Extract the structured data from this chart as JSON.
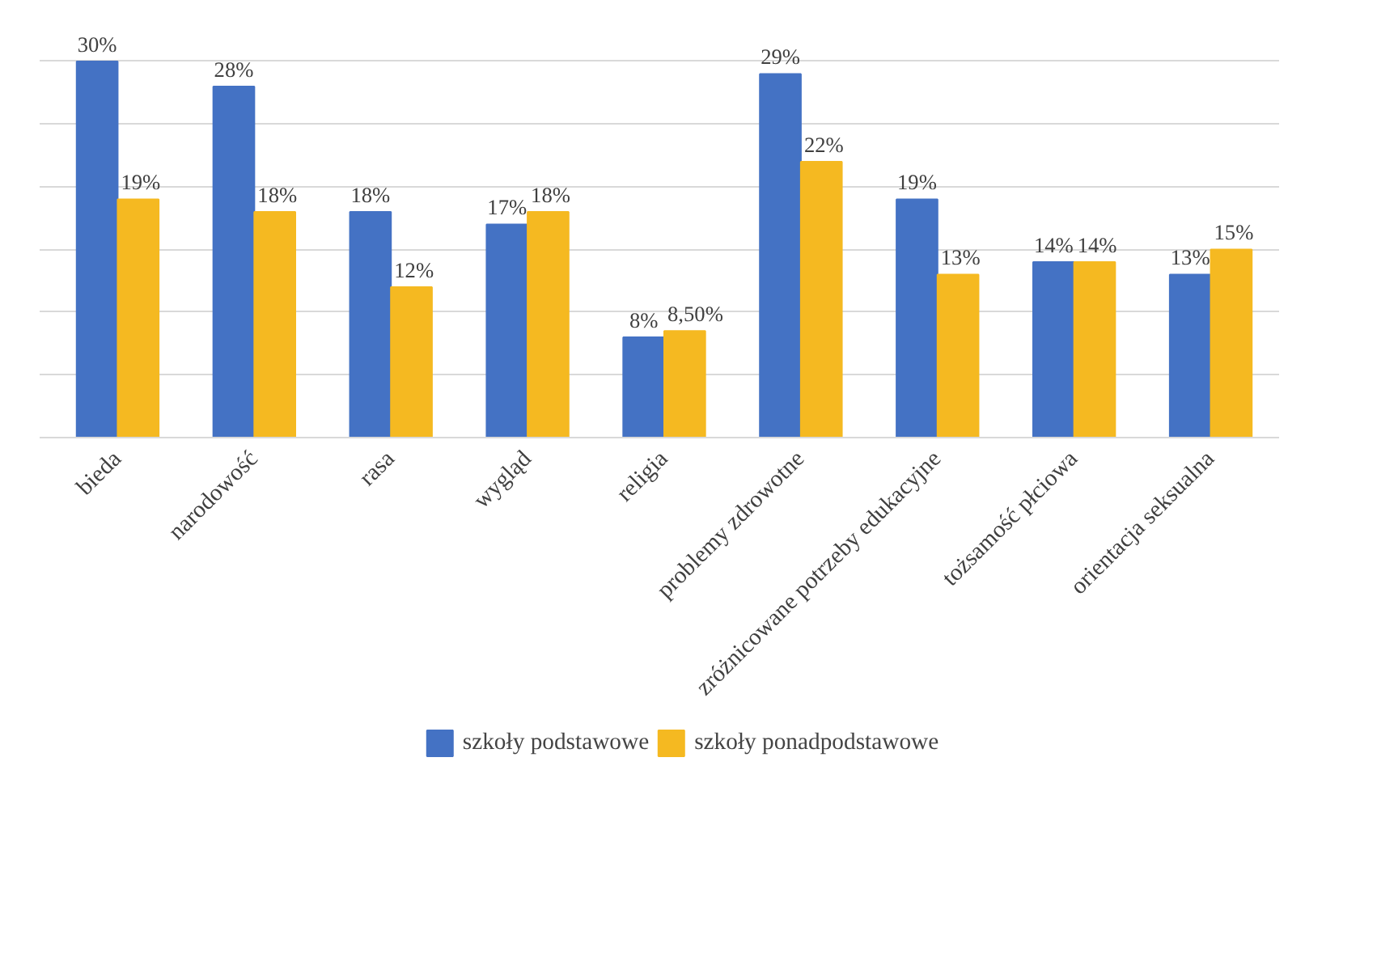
{
  "chart_data": {
    "type": "bar",
    "categories": [
      "bieda",
      "narodowość",
      "rasa",
      "wygląd",
      "religia",
      "problemy zdrowotne",
      "zróżnicowane potrzeby edukacyjne",
      "tożsamość płciowa",
      "orientacja seksualna"
    ],
    "series": [
      {
        "name": "szkoły podstawowe",
        "color": "#4472c4",
        "values": [
          30,
          28,
          18,
          17,
          8,
          29,
          19,
          14,
          13
        ],
        "value_labels": [
          "30%",
          "28%",
          "18%",
          "17%",
          "8%",
          "29%",
          "19%",
          "14%",
          "13%"
        ]
      },
      {
        "name": "szkoły ponadpodstawowe",
        "color": "#f5b921",
        "values": [
          19,
          18,
          12,
          18,
          8.5,
          22,
          13,
          14,
          15
        ],
        "value_labels": [
          "19%",
          "18%",
          "12%",
          "18%",
          "8,50%",
          "22%",
          "13%",
          "14%",
          "15%"
        ]
      }
    ],
    "tick_labels": "x",
    "grid": "y",
    "legend": "bottom"
  }
}
